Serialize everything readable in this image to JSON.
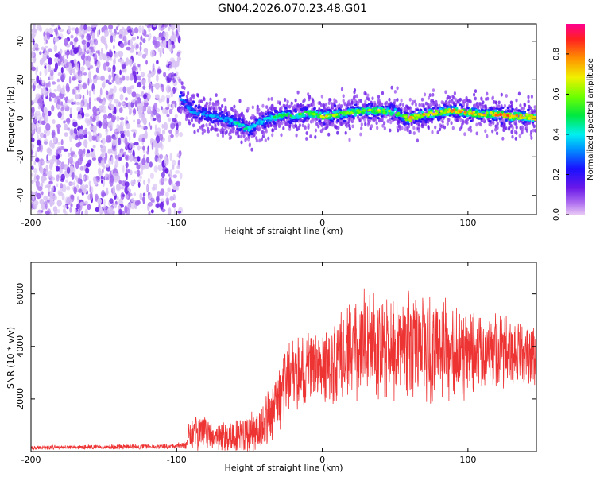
{
  "title": "GN04.2026.070.23.48.G01",
  "colors": {
    "snr_line": "#ee3333",
    "spectrogram_noise": "#9b5cf0",
    "spectrogram_low": "#5a14e8"
  },
  "chart_data": [
    {
      "type": "heatmap",
      "name": "spectrogram",
      "xlabel": "Height of straight line (km)",
      "ylabel": "Frequency (Hz)",
      "xlim": [
        -200,
        147
      ],
      "ylim": [
        -50,
        49
      ],
      "xticks": [
        -200,
        -100,
        0,
        100
      ],
      "yticks": [
        -40,
        -20,
        0,
        20,
        40
      ],
      "noise_region_x": [
        -200,
        -97
      ],
      "signal_track": {
        "x": [
          -97,
          -90,
          -80,
          -70,
          -60,
          -55,
          -50,
          -45,
          -40,
          -35,
          -30,
          -25,
          -20,
          -10,
          0,
          10,
          20,
          30,
          40,
          50,
          55,
          60,
          70,
          80,
          90,
          100,
          110,
          120,
          130,
          140,
          147
        ],
        "freq_hz": [
          11,
          4,
          2,
          0,
          -2,
          -4,
          -6,
          -3,
          -1,
          0,
          1,
          2,
          1,
          3,
          1,
          2,
          3,
          4,
          4,
          3,
          1,
          0,
          2,
          3,
          4,
          3,
          2,
          2,
          1,
          1,
          0
        ],
        "peak_amplitude": [
          0.3,
          0.35,
          0.35,
          0.35,
          0.4,
          0.5,
          0.45,
          0.4,
          0.4,
          0.45,
          0.5,
          0.5,
          0.5,
          0.55,
          0.7,
          0.6,
          0.6,
          0.6,
          0.65,
          0.6,
          0.55,
          0.8,
          0.75,
          0.7,
          0.8,
          0.75,
          0.7,
          0.85,
          0.8,
          0.8,
          0.75
        ]
      },
      "colorbar": {
        "label": "Normalized spectral amplitude",
        "range": [
          0,
          0.95
        ],
        "ticks": [
          "0.0",
          "0.2",
          "0.4",
          "0.6",
          "0.8"
        ],
        "tick_values": [
          0.0,
          0.2,
          0.4,
          0.6,
          0.8
        ]
      }
    },
    {
      "type": "line",
      "name": "snr",
      "xlabel": "Height of straight line (km)",
      "ylabel": "SNR (10 * v/v)",
      "xlim": [
        -200,
        147
      ],
      "ylim": [
        0,
        7200
      ],
      "xticks": [
        -200,
        -100,
        0,
        100
      ],
      "yticks": [
        2000,
        4000,
        6000
      ],
      "envelope": {
        "x": [
          -200,
          -100,
          -95,
          -90,
          -80,
          -70,
          -60,
          -50,
          -40,
          -30,
          -20,
          -10,
          0,
          10,
          20,
          30,
          40,
          50,
          60,
          70,
          80,
          90,
          100,
          110,
          120,
          130,
          140,
          147
        ],
        "mean": [
          150,
          200,
          250,
          700,
          700,
          500,
          600,
          700,
          900,
          2100,
          2900,
          3000,
          3200,
          3500,
          3700,
          4300,
          4100,
          4000,
          3900,
          3800,
          4200,
          3800,
          3800,
          3700,
          3900,
          3700,
          3600,
          3600
        ],
        "spread": [
          80,
          100,
          200,
          700,
          700,
          600,
          700,
          900,
          1000,
          1300,
          1500,
          1600,
          1800,
          1800,
          1900,
          2200,
          2300,
          2200,
          2200,
          2000,
          2200,
          1900,
          1700,
          1500,
          1400,
          1300,
          1200,
          1200
        ]
      }
    }
  ]
}
